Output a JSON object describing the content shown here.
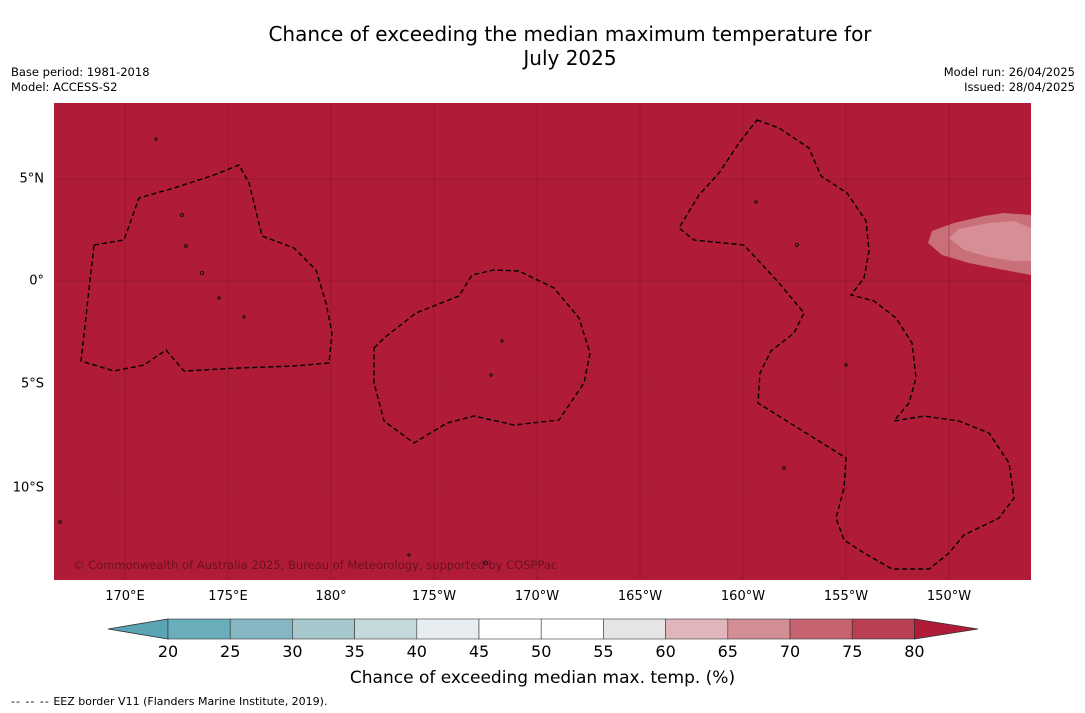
{
  "title_line1": "Chance of exceeding the median maximum temperature for",
  "title_line2": "July 2025",
  "base_period": "Base period: 1981-2018",
  "model": "Model: ACCESS-S2",
  "model_run": "Model run: 26/04/2025",
  "issued": "Issued: 28/04/2025",
  "copyright": "© Commonwealth of Australia 2025, Bureau of Meteorology, supported by COSPPac",
  "longitude_labels": [
    "170°E",
    "175°E",
    "180°",
    "175°W",
    "170°W",
    "165°W",
    "160°W",
    "155°W",
    "150°W"
  ],
  "latitude_labels": [
    "5°N",
    "0°",
    "5°S",
    "10°S"
  ],
  "colorbar": {
    "ticks": [
      "20",
      "25",
      "30",
      "35",
      "40",
      "45",
      "50",
      "55",
      "60",
      "65",
      "70",
      "75",
      "80"
    ],
    "colors": [
      "#6aadbb",
      "#86b6c2",
      "#a6c8cc",
      "#c5d9dc",
      "#e7edf0",
      "#ffffff",
      "#ffffff",
      "#e6e6e6",
      "#e0b6bc",
      "#d38d95",
      "#c56470",
      "#b93f52"
    ],
    "under_color": "#5aa4b4",
    "over_color": "#b01c38",
    "label": "Chance of exceeding median max. temp. (%)"
  },
  "map_fill_color": "#b01c38",
  "footnote_dash": "-- -- --",
  "footnote": "EEZ border V11 (Flanders Marine Institute, 2019)."
}
